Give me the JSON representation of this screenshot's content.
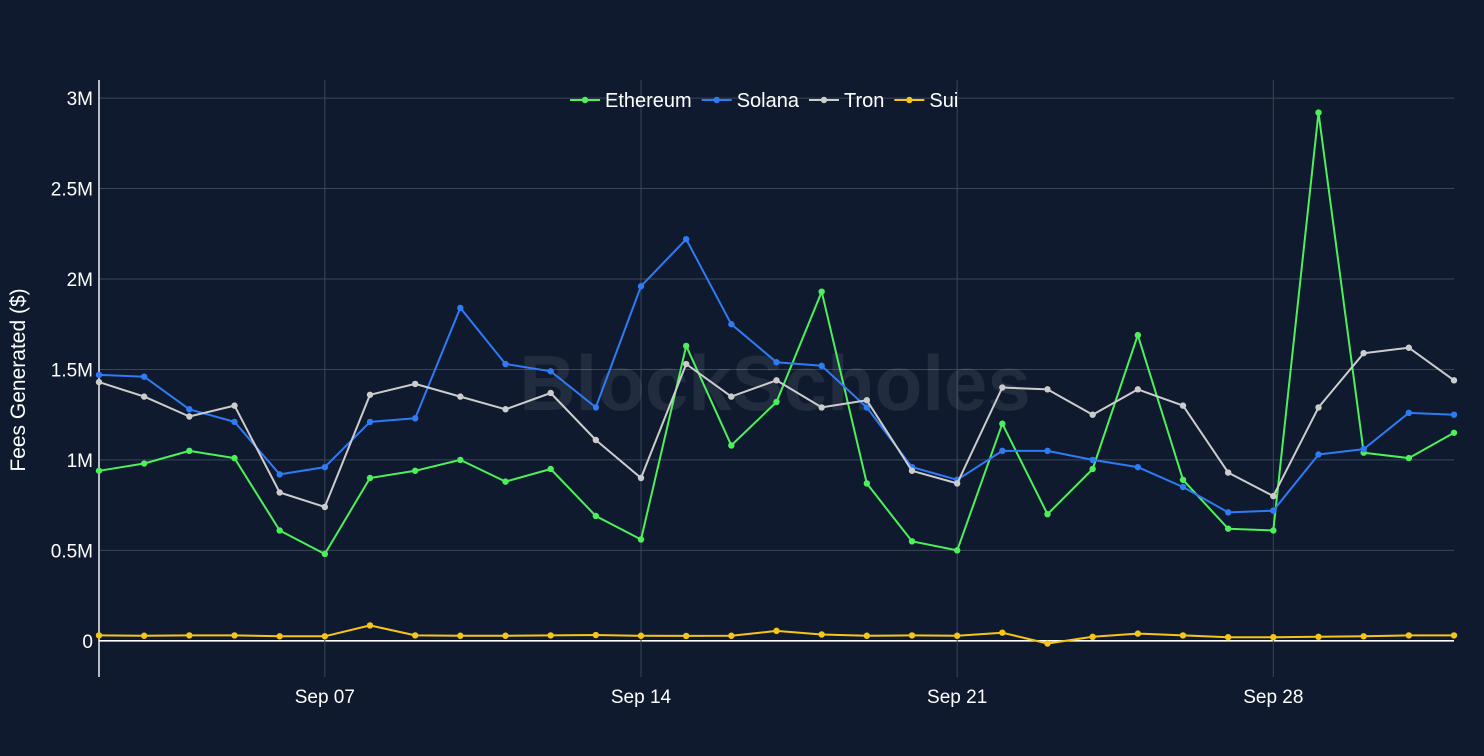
{
  "chart_data": {
    "type": "line",
    "ylabel": "Fees Generated ($)",
    "watermark": "BlockScholes",
    "x": [
      "Sep 02",
      "Sep 03",
      "Sep 04",
      "Sep 05",
      "Sep 06",
      "Sep 07",
      "Sep 08",
      "Sep 09",
      "Sep 10",
      "Sep 11",
      "Sep 12",
      "Sep 13",
      "Sep 14",
      "Sep 15",
      "Sep 16",
      "Sep 17",
      "Sep 18",
      "Sep 19",
      "Sep 20",
      "Sep 21",
      "Sep 22",
      "Sep 23",
      "Sep 24",
      "Sep 25",
      "Sep 26",
      "Sep 27",
      "Sep 28",
      "Sep 29",
      "Sep 30",
      "Oct 01",
      "Oct 02"
    ],
    "x_ticks": [
      {
        "date": "Sep 07",
        "label": "Sep 07"
      },
      {
        "date": "Sep 14",
        "label": "Sep 14"
      },
      {
        "date": "Sep 21",
        "label": "Sep 21"
      },
      {
        "date": "Sep 28",
        "label": "Sep 28"
      }
    ],
    "y_ticks": [
      {
        "value": 0,
        "label": "0"
      },
      {
        "value": 500000,
        "label": "0.5M"
      },
      {
        "value": 1000000,
        "label": "1M"
      },
      {
        "value": 1500000,
        "label": "1.5M"
      },
      {
        "value": 2000000,
        "label": "2M"
      },
      {
        "value": 2500000,
        "label": "2.5M"
      },
      {
        "value": 3000000,
        "label": "3M"
      }
    ],
    "ylim": [
      -200000,
      3100000
    ],
    "grid": true,
    "legend_position": "top-center",
    "series": [
      {
        "name": "Ethereum",
        "color": "#4cf05a",
        "values": [
          940000,
          980000,
          1050000,
          1010000,
          610000,
          480000,
          900000,
          940000,
          1000000,
          880000,
          950000,
          690000,
          560000,
          1630000,
          1080000,
          1320000,
          1930000,
          870000,
          550000,
          500000,
          1200000,
          700000,
          950000,
          1690000,
          890000,
          620000,
          610000,
          2920000,
          1040000,
          1010000,
          1150000
        ]
      },
      {
        "name": "Solana",
        "color": "#2f7bf5",
        "values": [
          1470000,
          1460000,
          1280000,
          1210000,
          920000,
          960000,
          1210000,
          1230000,
          1840000,
          1530000,
          1490000,
          1290000,
          1960000,
          2220000,
          1750000,
          1540000,
          1520000,
          1290000,
          960000,
          890000,
          1050000,
          1050000,
          1000000,
          960000,
          850000,
          710000,
          720000,
          1030000,
          1060000,
          1260000,
          1250000
        ]
      },
      {
        "name": "Tron",
        "color": "#cccccc",
        "values": [
          1430000,
          1350000,
          1240000,
          1300000,
          820000,
          740000,
          1360000,
          1420000,
          1350000,
          1280000,
          1370000,
          1110000,
          900000,
          1530000,
          1350000,
          1440000,
          1290000,
          1330000,
          940000,
          870000,
          1400000,
          1390000,
          1250000,
          1390000,
          1300000,
          930000,
          800000,
          1290000,
          1590000,
          1620000,
          1440000
        ]
      },
      {
        "name": "Sui",
        "color": "#f5c518",
        "values": [
          30000,
          28000,
          30000,
          30000,
          25000,
          25000,
          85000,
          30000,
          28000,
          28000,
          30000,
          32000,
          28000,
          27000,
          28000,
          55000,
          35000,
          28000,
          30000,
          28000,
          45000,
          -15000,
          22000,
          40000,
          30000,
          20000,
          20000,
          22000,
          25000,
          30000,
          30000
        ]
      }
    ]
  }
}
